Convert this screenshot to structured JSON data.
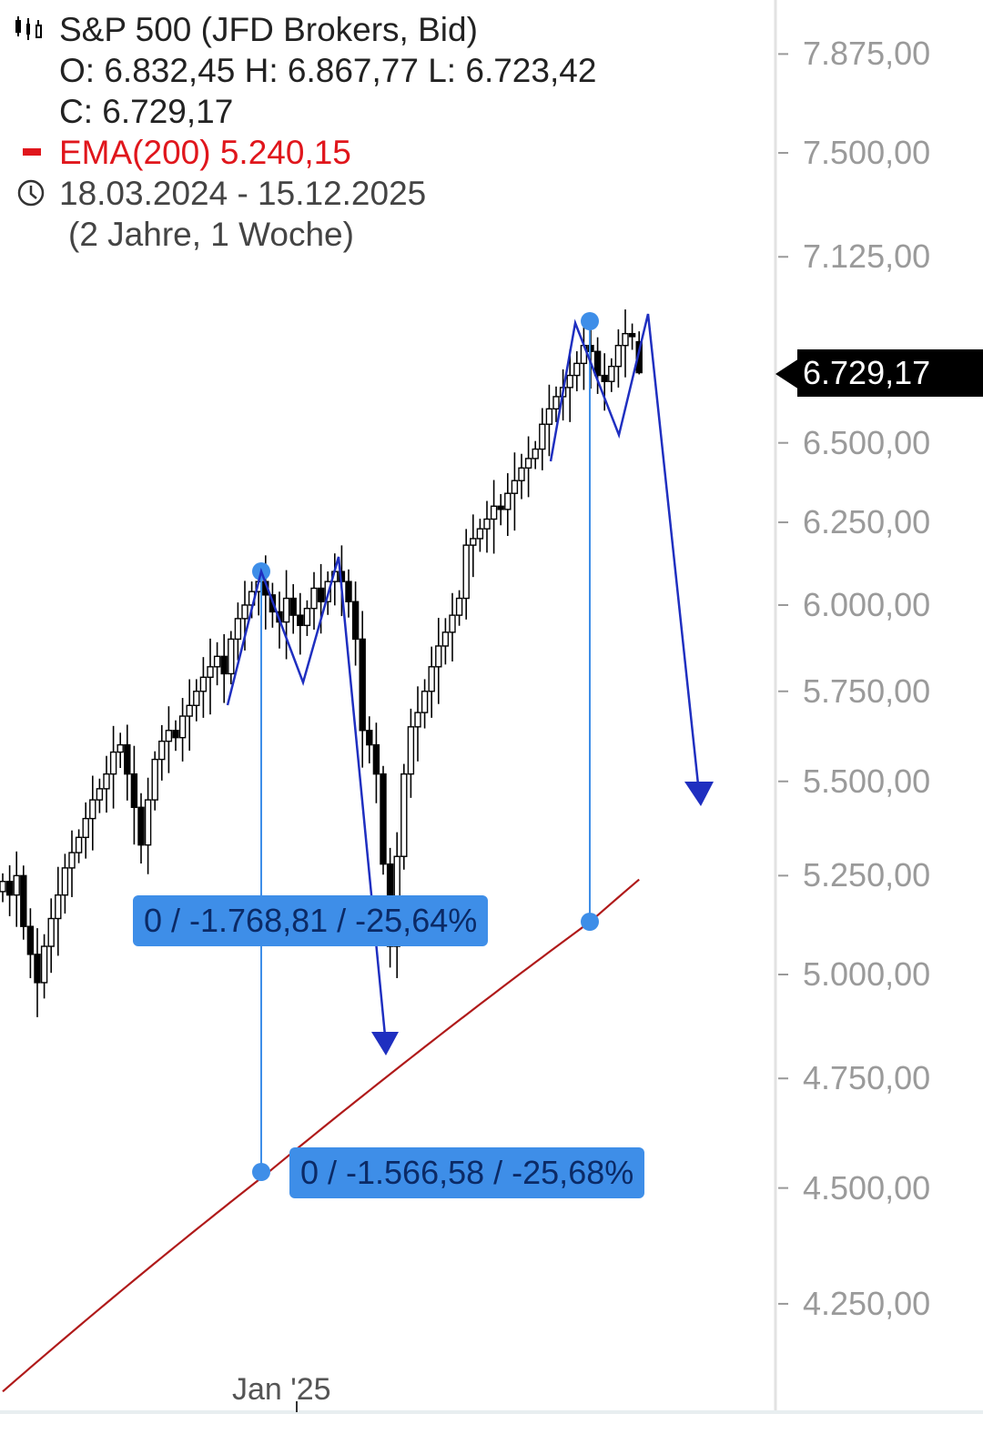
{
  "header": {
    "title": "S&P 500 (JFD Brokers, Bid)",
    "ohlc_line": "O: 6.832,45  H: 6.867,77  L: 6.723,42",
    "close_line": "C: 6.729,17",
    "indicator": "EMA(200) 5.240,15",
    "date_range": "18.03.2024 - 15.12.2025",
    "duration": "(2 Jahre, 1 Woche)",
    "icons": [
      "candlestick-icon",
      "ema-legend-swatch",
      "clock-icon"
    ]
  },
  "current_price_label": "6.729,17",
  "measurements": [
    "0 / -1.768,81 / -25,64%",
    "0 / -1.566,58 / -25,68%"
  ],
  "chart_data": {
    "type": "candlestick",
    "interval": "weekly",
    "y_scale": "log",
    "ylim": [
      4100,
      8000
    ],
    "y_ticks": [
      "7.875,00",
      "7.500,00",
      "7.125,00",
      "6.500,00",
      "6.250,00",
      "6.000,00",
      "5.750,00",
      "5.500,00",
      "5.250,00",
      "5.000,00",
      "4.750,00",
      "4.500,00",
      "4.250,00"
    ],
    "y_tick_values": [
      7875,
      7500,
      7125,
      6500,
      6250,
      6000,
      5750,
      5500,
      5250,
      5000,
      4750,
      4500,
      4250
    ],
    "x_ticks": [
      "Jan '25"
    ],
    "x_tick_index": 43,
    "closes": [
      5235,
      5200,
      5250,
      5120,
      5050,
      4980,
      5070,
      5140,
      5200,
      5270,
      5310,
      5350,
      5400,
      5450,
      5480,
      5520,
      5580,
      5600,
      5520,
      5430,
      5330,
      5450,
      5560,
      5610,
      5640,
      5620,
      5680,
      5710,
      5750,
      5790,
      5820,
      5850,
      5800,
      5900,
      5960,
      6000,
      6040,
      6070,
      6030,
      5980,
      5950,
      6020,
      5970,
      5940,
      5990,
      6050,
      6010,
      6070,
      6100,
      6070,
      6010,
      5900,
      5640,
      5600,
      5520,
      5280,
      5070,
      5300,
      5520,
      5650,
      5690,
      5750,
      5820,
      5880,
      5920,
      5970,
      6020,
      6180,
      6200,
      6230,
      6260,
      6300,
      6290,
      6340,
      6380,
      6420,
      6450,
      6480,
      6560,
      6610,
      6650,
      6680,
      6720,
      6760,
      6820,
      6800,
      6720,
      6700,
      6750,
      6820,
      6860,
      6850,
      6729.17
    ],
    "last_candle": {
      "open": 6832.45,
      "high": 6867.77,
      "low": 6723.42,
      "close": 6729.17
    },
    "ema": {
      "name": "EMA(200)",
      "color": "#b01a1a",
      "points": [
        [
          0,
          4070
        ],
        [
          38,
          4530
        ],
        [
          56,
          4760
        ],
        [
          85,
          5133
        ],
        [
          92,
          5240.15
        ]
      ]
    },
    "colors": {
      "candle": "#000000",
      "measure": "#3e8ee8",
      "drawing": "#1f2fc0",
      "ema": "#b01a1a"
    }
  }
}
